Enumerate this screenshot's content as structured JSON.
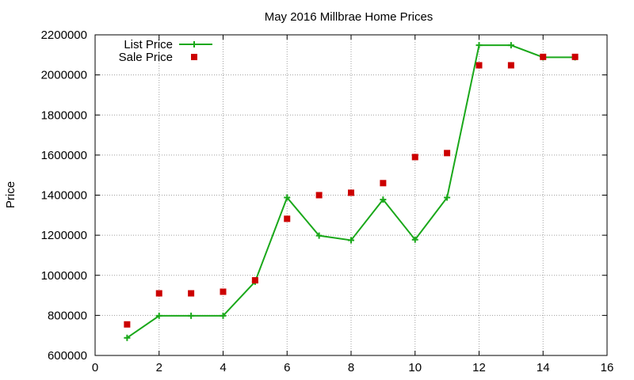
{
  "chart_data": {
    "type": "line",
    "title": "May 2016 Millbrae Home Prices",
    "xlabel": "",
    "ylabel": "Price",
    "xlim": [
      0,
      16
    ],
    "ylim": [
      600000,
      2200000
    ],
    "xticks": [
      0,
      2,
      4,
      6,
      8,
      10,
      12,
      14,
      16
    ],
    "yticks": [
      600000,
      800000,
      1000000,
      1200000,
      1400000,
      1600000,
      1800000,
      2000000,
      2200000
    ],
    "grid": true,
    "legend_position": "top-left",
    "series": [
      {
        "name": "List Price",
        "style": "line-plus",
        "color": "#1aa81a",
        "x": [
          1,
          2,
          3,
          4,
          5,
          6,
          7,
          8,
          9,
          10,
          11,
          12,
          13,
          14,
          15
        ],
        "y": [
          688000,
          798000,
          798000,
          798000,
          968000,
          1388000,
          1198000,
          1175000,
          1378000,
          1178000,
          1388000,
          2148000,
          2148000,
          2088000,
          2088000
        ]
      },
      {
        "name": "Sale Price",
        "style": "square-marker",
        "color": "#cc0000",
        "x": [
          1,
          2,
          3,
          4,
          5,
          6,
          7,
          8,
          9,
          10,
          11,
          12,
          13,
          14,
          15
        ],
        "y": [
          755000,
          910000,
          910000,
          918000,
          975000,
          1282000,
          1400000,
          1412000,
          1460000,
          1590000,
          1610000,
          2048000,
          2048000,
          2090000,
          2090000
        ]
      }
    ]
  }
}
